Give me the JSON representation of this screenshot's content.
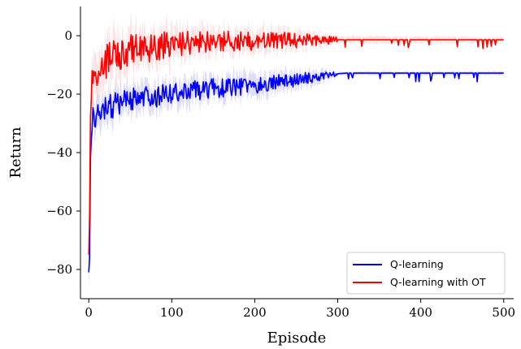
{
  "chart_data": {
    "type": "line",
    "title": "",
    "xlabel": "Episode",
    "ylabel": "Return",
    "xlim": [
      -10,
      512
    ],
    "ylim": [
      -90,
      10
    ],
    "xticks": [
      0,
      100,
      200,
      300,
      400,
      500
    ],
    "yticks": [
      -80,
      -60,
      -40,
      -20,
      0
    ],
    "xtick_labels": [
      "0",
      "100",
      "200",
      "300",
      "400",
      "500"
    ],
    "ytick_labels": [
      "−80",
      "−60",
      "−40",
      "−20",
      "0"
    ],
    "grid": false,
    "legend_position": "lower-right",
    "series": [
      {
        "name": "Q-learning",
        "color": "#0000ff",
        "band_color": "#c8c8f5",
        "points": [
          [
            0,
            -81
          ],
          [
            1,
            -76
          ],
          [
            2,
            -42
          ],
          [
            4,
            -29
          ],
          [
            6,
            -28
          ],
          [
            10,
            -28
          ],
          [
            20,
            -25
          ],
          [
            30,
            -24
          ],
          [
            50,
            -22
          ],
          [
            75,
            -21
          ],
          [
            100,
            -20
          ],
          [
            125,
            -19
          ],
          [
            150,
            -18
          ],
          [
            175,
            -17.5
          ],
          [
            200,
            -17
          ],
          [
            225,
            -16
          ],
          [
            250,
            -15
          ],
          [
            275,
            -14
          ],
          [
            290,
            -13.5
          ],
          [
            300,
            -13
          ],
          [
            310,
            -12.8
          ],
          [
            350,
            -12.8
          ],
          [
            400,
            -12.8
          ],
          [
            450,
            -12.8
          ],
          [
            500,
            -12.8
          ]
        ],
        "band_halfwidth": [
          [
            0,
            4
          ],
          [
            10,
            5
          ],
          [
            100,
            4
          ],
          [
            200,
            3.5
          ],
          [
            280,
            2
          ],
          [
            300,
            0.6
          ],
          [
            500,
            0.6
          ]
        ]
      },
      {
        "name": "Q-learning with OT",
        "color": "#ff0000",
        "band_color": "#fbd0d0",
        "points": [
          [
            0,
            -75
          ],
          [
            1,
            -62
          ],
          [
            2,
            -28
          ],
          [
            4,
            -16
          ],
          [
            6,
            -14
          ],
          [
            10,
            -12
          ],
          [
            20,
            -9
          ],
          [
            30,
            -7
          ],
          [
            50,
            -5
          ],
          [
            75,
            -4
          ],
          [
            100,
            -3
          ],
          [
            125,
            -2.5
          ],
          [
            150,
            -2
          ],
          [
            200,
            -1.8
          ],
          [
            250,
            -1.5
          ],
          [
            300,
            -1.4
          ],
          [
            350,
            -1.4
          ],
          [
            400,
            -1.4
          ],
          [
            450,
            -1.4
          ],
          [
            500,
            -1.4
          ]
        ],
        "band_halfwidth": [
          [
            0,
            6
          ],
          [
            10,
            7
          ],
          [
            50,
            6
          ],
          [
            150,
            4
          ],
          [
            250,
            3
          ],
          [
            300,
            1.2
          ],
          [
            500,
            1
          ]
        ]
      }
    ]
  }
}
